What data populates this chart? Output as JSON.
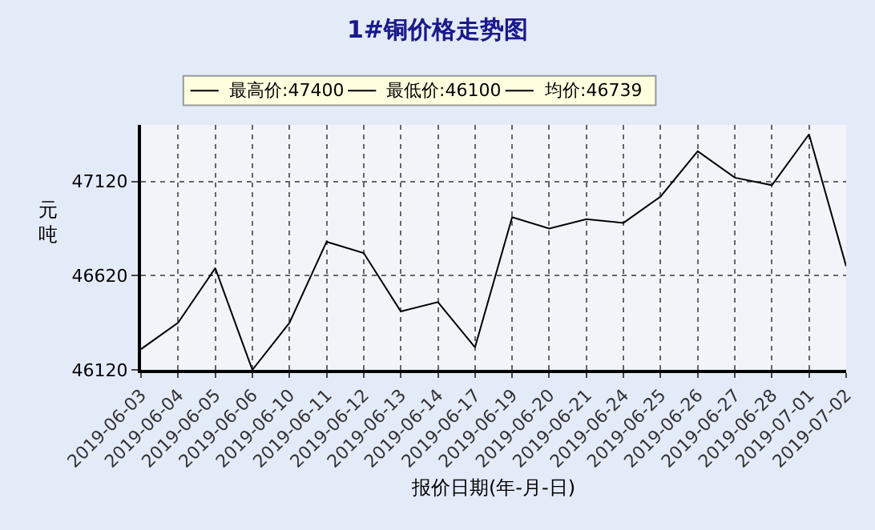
{
  "chart_data": {
    "type": "line",
    "title": "1#铜价格走势图",
    "xlabel": "报价日期(年-月-日)",
    "ylabel": "元吨",
    "categories": [
      "2019-06-03",
      "2019-06-04",
      "2019-06-05",
      "2019-06-06",
      "2019-06-10",
      "2019-06-11",
      "2019-06-12",
      "2019-06-13",
      "2019-06-14",
      "2019-06-17",
      "2019-06-19",
      "2019-06-20",
      "2019-06-21",
      "2019-06-24",
      "2019-06-25",
      "2019-06-26",
      "2019-06-27",
      "2019-06-28",
      "2019-07-01",
      "2019-07-02"
    ],
    "series": [
      {
        "color": "#000000",
        "values": [
          46230,
          46370,
          46660,
          46120,
          46370,
          46800,
          46740,
          46430,
          46480,
          46240,
          46930,
          46870,
          46920,
          46900,
          47040,
          47280,
          47140,
          47100,
          47370,
          46670
        ]
      }
    ],
    "annotations": [
      "最高价:47400",
      "最低价:46100",
      "均价:46739"
    ],
    "ylim": [
      46120,
      47420
    ],
    "yticks": [
      46120,
      46620,
      47120
    ],
    "grid": true,
    "line_style": "solid",
    "marker": "none"
  }
}
